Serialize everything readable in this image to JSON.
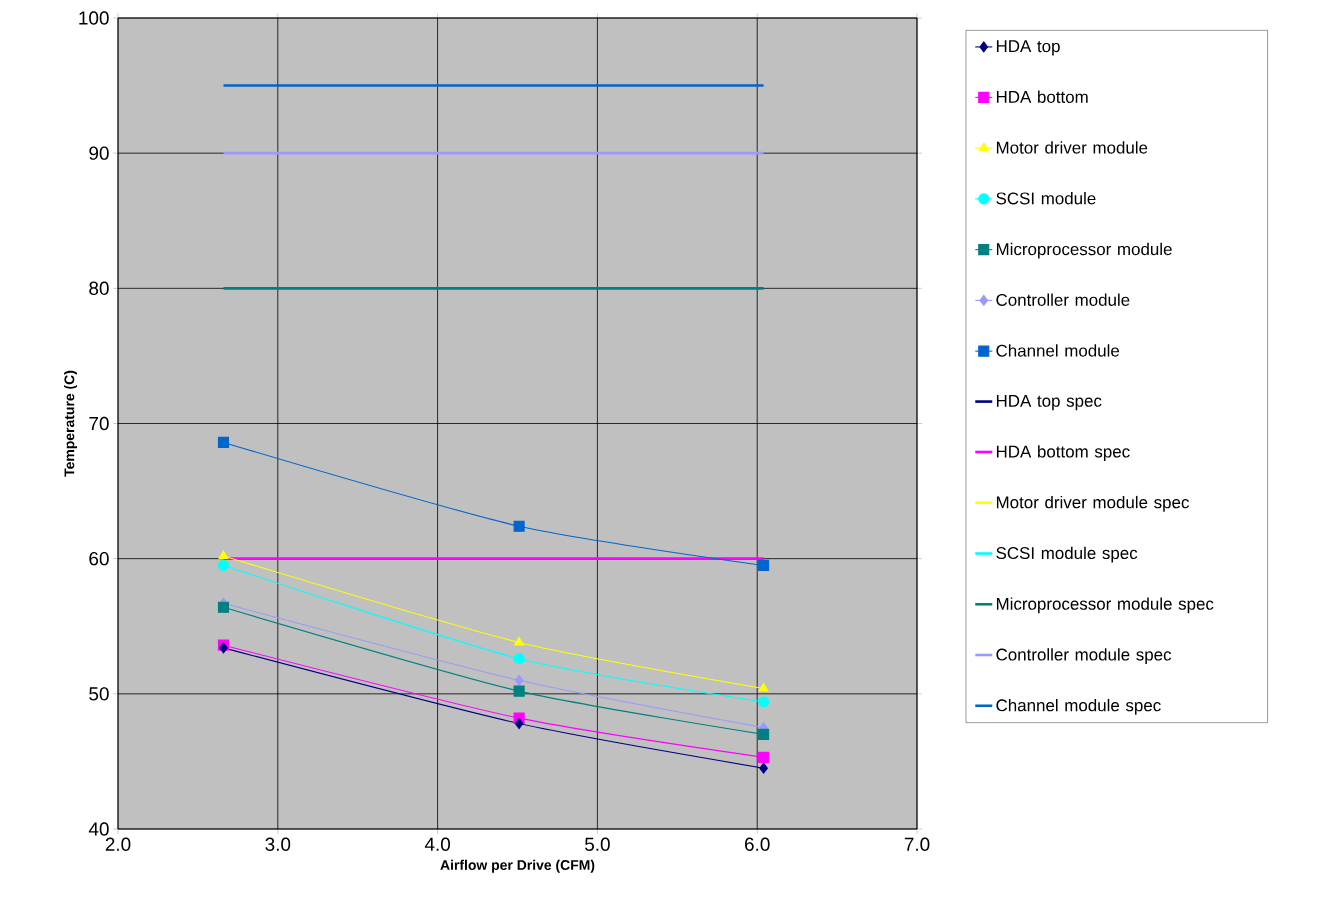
{
  "chart_data": {
    "type": "line",
    "xlabel": "Airflow per Drive (CFM)",
    "ylabel": "Temperature (C)",
    "xlim": [
      2.0,
      7.0
    ],
    "ylim": [
      40,
      100
    ],
    "xticks": [
      {
        "value": 2,
        "label": "2.0"
      },
      {
        "value": 3,
        "label": "3.0"
      },
      {
        "value": 4,
        "label": "4.0"
      },
      {
        "value": 5,
        "label": "5.0"
      },
      {
        "value": 6,
        "label": "6.0"
      },
      {
        "value": 7,
        "label": "7.0"
      }
    ],
    "yticks": [
      40,
      50,
      60,
      70,
      80,
      90,
      100
    ],
    "grid": true,
    "legend": "right",
    "series": [
      {
        "name": "HDA top",
        "color": "#000080",
        "marker": "diamond",
        "x": [
          2.66,
          4.51,
          6.04
        ],
        "values": [
          53.4,
          47.8,
          44.5
        ]
      },
      {
        "name": "HDA bottom",
        "color": "#ff00ff",
        "marker": "square",
        "x": [
          2.66,
          4.51,
          6.04
        ],
        "values": [
          53.6,
          48.2,
          45.3
        ]
      },
      {
        "name": "Motor driver module",
        "color": "#ffff00",
        "marker": "triangle",
        "x": [
          2.66,
          4.51,
          6.04
        ],
        "values": [
          60.2,
          53.8,
          50.4
        ]
      },
      {
        "name": "SCSI module",
        "color": "#00ffff",
        "marker": "circle",
        "x": [
          2.66,
          4.51,
          6.04
        ],
        "values": [
          59.5,
          52.6,
          49.4
        ]
      },
      {
        "name": "Microprocessor module",
        "color": "#008080",
        "marker": "square",
        "x": [
          2.66,
          4.51,
          6.04
        ],
        "values": [
          56.4,
          50.2,
          47.0
        ]
      },
      {
        "name": "Controller module",
        "color": "#9999ff",
        "marker": "diamond",
        "x": [
          2.66,
          4.51,
          6.04
        ],
        "values": [
          56.7,
          51.0,
          47.5
        ]
      },
      {
        "name": "Channel module",
        "color": "#0066cc",
        "marker": "square",
        "x": [
          2.66,
          4.51,
          6.04
        ],
        "values": [
          68.6,
          62.4,
          59.5
        ]
      },
      {
        "name": "HDA top spec",
        "color": "#000080",
        "marker": "none"
      },
      {
        "name": "HDA bottom spec",
        "color": "#ff00ff",
        "marker": "none",
        "x": [
          2.66,
          6.04
        ],
        "values": [
          60,
          60
        ]
      },
      {
        "name": "Motor driver module spec",
        "color": "#ffff00",
        "marker": "none"
      },
      {
        "name": "SCSI module spec",
        "color": "#00ffff",
        "marker": "none"
      },
      {
        "name": "Microprocessor module spec",
        "color": "#008080",
        "marker": "none",
        "x": [
          2.66,
          6.04
        ],
        "values": [
          80,
          80
        ]
      },
      {
        "name": "Controller module spec",
        "color": "#9999ff",
        "marker": "none",
        "x": [
          2.66,
          6.04
        ],
        "values": [
          90,
          90
        ]
      },
      {
        "name": "Channel module spec",
        "color": "#0066cc",
        "marker": "none",
        "x": [
          2.66,
          6.04
        ],
        "values": [
          95,
          95
        ]
      }
    ]
  }
}
